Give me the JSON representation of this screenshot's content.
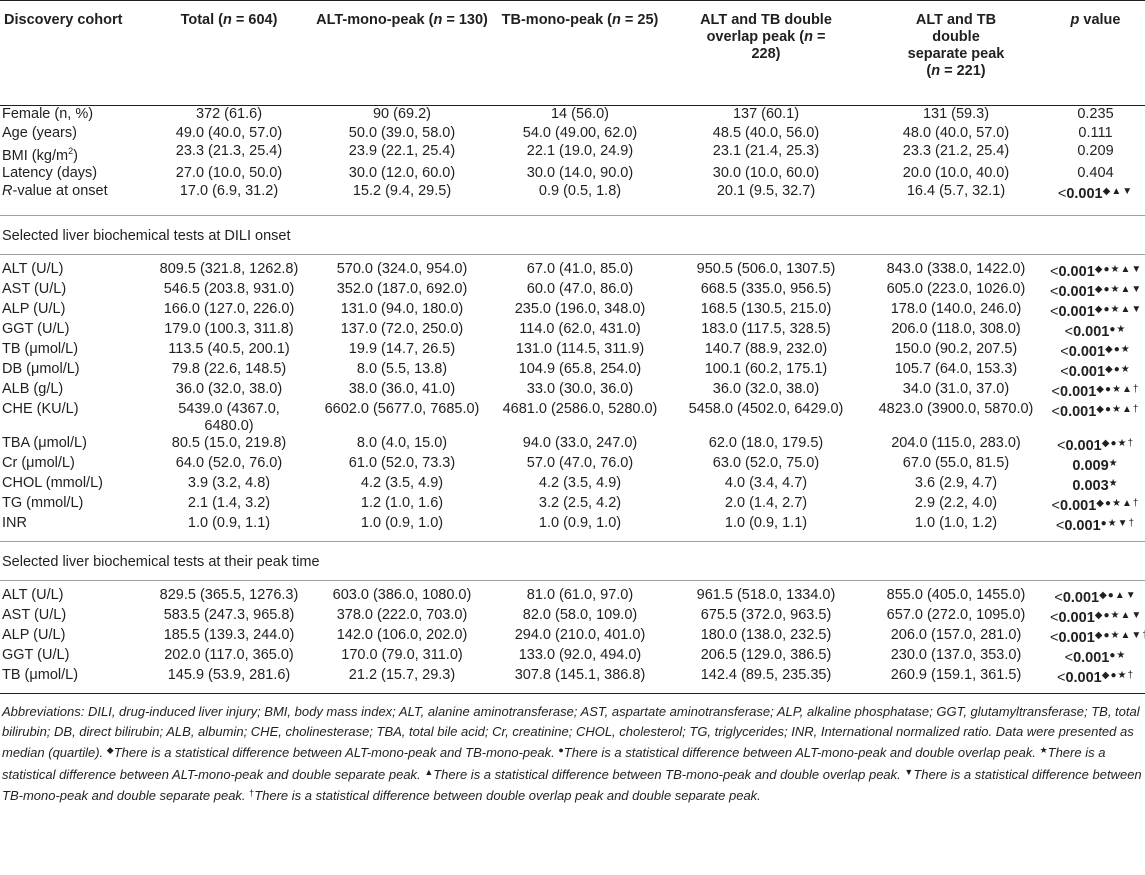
{
  "header": {
    "col0": "Discovery cohort",
    "col1_pre": "Total (",
    "col1_n": "n",
    "col1_post": " = 604)",
    "col2_pre": "ALT-mono-peak (",
    "col2_n": "n",
    "col2_post": " = 130)",
    "col3_pre": "TB-mono-peak (",
    "col3_n": "n",
    "col3_post": " = 25)",
    "col4_pre": "ALT and TB double overlap peak (",
    "col4_n": "n",
    "col4_post": " = 228)",
    "col5_pre": "ALT and TB double separate peak (",
    "col5_n": "n",
    "col5_post": " = 221)",
    "col6_pre": "",
    "col6_n": "p",
    "col6_post": " value"
  },
  "demographics": [
    {
      "label": "Female (n, %)",
      "total": "372 (61.6)",
      "alt": "90 (69.2)",
      "tb": "14 (56.0)",
      "overlap": "137 (60.1)",
      "separate": "131 (59.3)",
      "p": "0.235",
      "marks": "",
      "bold": false
    },
    {
      "label": "Age (years)",
      "total": "49.0 (40.0, 57.0)",
      "alt": "50.0 (39.0, 58.0)",
      "tb": "54.0 (49.00, 62.0)",
      "overlap": "48.5 (40.0, 56.0)",
      "separate": "48.0 (40.0, 57.0)",
      "p": "0.111",
      "marks": "",
      "bold": false
    },
    {
      "label": "BMI (kg/m²)",
      "total": "23.3 (21.3, 25.4)",
      "alt": "23.9 (22.1, 25.4)",
      "tb": "22.1 (19.0, 24.9)",
      "overlap": "23.1 (21.4, 25.3)",
      "separate": "23.3 (21.2, 25.4)",
      "p": "0.209",
      "marks": "",
      "bold": false
    },
    {
      "label": "Latency (days)",
      "total": "27.0 (10.0, 50.0)",
      "alt": "30.0 (12.0, 60.0)",
      "tb": "30.0 (14.0, 90.0)",
      "overlap": "30.0 (10.0, 60.0)",
      "separate": "20.0 (10.0, 40.0)",
      "p": "0.404",
      "marks": "",
      "bold": false
    },
    {
      "label": "R-value at onset",
      "total": "17.0 (6.9, 31.2)",
      "alt": "15.2 (9.4, 29.5)",
      "tb": "0.9 (0.5, 1.8)",
      "overlap": "20.1 (9.5, 32.7)",
      "separate": "16.4 (5.7, 32.1)",
      "p": "<0.001",
      "marks": "◆▲▼",
      "bold": true
    }
  ],
  "section_onset": "Selected liver biochemical tests at DILI onset",
  "onset": [
    {
      "label": "ALT (U/L)",
      "total": "809.5 (321.8, 1262.8)",
      "alt": "570.0 (324.0, 954.0)",
      "tb": "67.0 (41.0, 85.0)",
      "overlap": "950.5 (506.0, 1307.5)",
      "separate": "843.0 (338.0, 1422.0)",
      "p": "<0.001",
      "marks": "◆●★▲▼",
      "bold": true
    },
    {
      "label": "AST (U/L)",
      "total": "546.5 (203.8, 931.0)",
      "alt": "352.0 (187.0, 692.0)",
      "tb": "60.0 (47.0, 86.0)",
      "overlap": "668.5 (335.0, 956.5)",
      "separate": "605.0 (223.0, 1026.0)",
      "p": "<0.001",
      "marks": "◆●★▲▼",
      "bold": true
    },
    {
      "label": "ALP (U/L)",
      "total": "166.0 (127.0, 226.0)",
      "alt": "131.0 (94.0, 180.0)",
      "tb": "235.0 (196.0, 348.0)",
      "overlap": "168.5 (130.5, 215.0)",
      "separate": "178.0 (140.0, 246.0)",
      "p": "<0.001",
      "marks": "◆●★▲▼",
      "bold": true
    },
    {
      "label": "GGT (U/L)",
      "total": "179.0 (100.3, 311.8)",
      "alt": "137.0 (72.0, 250.0)",
      "tb": "114.0 (62.0, 431.0)",
      "overlap": "183.0 (117.5, 328.5)",
      "separate": "206.0 (118.0, 308.0)",
      "p": "<0.001",
      "marks": "●★",
      "bold": true
    },
    {
      "label": "TB (μmol/L)",
      "total": "113.5 (40.5, 200.1)",
      "alt": "19.9 (14.7, 26.5)",
      "tb": "131.0 (114.5, 311.9)",
      "overlap": "140.7 (88.9, 232.0)",
      "separate": "150.0 (90.2, 207.5)",
      "p": "<0.001",
      "marks": "◆●★",
      "bold": true
    },
    {
      "label": "DB (μmol/L)",
      "total": "79.8 (22.6, 148.5)",
      "alt": "8.0 (5.5, 13.8)",
      "tb": "104.9 (65.8, 254.0)",
      "overlap": "100.1 (60.2, 175.1)",
      "separate": "105.7 (64.0, 153.3)",
      "p": "<0.001",
      "marks": "◆●★",
      "bold": true
    },
    {
      "label": "ALB (g/L)",
      "total": "36.0 (32.0, 38.0)",
      "alt": "38.0 (36.0, 41.0)",
      "tb": "33.0 (30.0, 36.0)",
      "overlap": "36.0 (32.0, 38.0)",
      "separate": "34.0 (31.0, 37.0)",
      "p": "<0.001",
      "marks": "◆●★▲†",
      "bold": true
    },
    {
      "label": "CHE (KU/L)",
      "total": "5439.0 (4367.0, 6480.0)",
      "alt": "6602.0 (5677.0, 7685.0)",
      "tb": "4681.0 (2586.0, 5280.0)",
      "overlap": "5458.0 (4502.0, 6429.0)",
      "separate": "4823.0 (3900.0, 5870.0)",
      "p": "<0.001",
      "marks": "◆●★▲†",
      "bold": true
    },
    {
      "label": "TBA (μmol/L)",
      "total": "80.5 (15.0, 219.8)",
      "alt": "8.0 (4.0, 15.0)",
      "tb": "94.0 (33.0, 247.0)",
      "overlap": "62.0 (18.0, 179.5)",
      "separate": "204.0 (115.0, 283.0)",
      "p": "<0.001",
      "marks": "◆●★†",
      "bold": true
    },
    {
      "label": "Cr (μmol/L)",
      "total": "64.0 (52.0, 76.0)",
      "alt": "61.0 (52.0, 73.3)",
      "tb": "57.0 (47.0, 76.0)",
      "overlap": "63.0 (52.0, 75.0)",
      "separate": "67.0 (55.0, 81.5)",
      "p": "0.009",
      "marks": "★",
      "bold": true
    },
    {
      "label": "CHOL (mmol/L)",
      "total": "3.9 (3.2, 4.8)",
      "alt": "4.2 (3.5, 4.9)",
      "tb": "4.2 (3.5, 4.9)",
      "overlap": "4.0 (3.4, 4.7)",
      "separate": "3.6 (2.9, 4.7)",
      "p": "0.003",
      "marks": "★",
      "bold": true
    },
    {
      "label": "TG (mmol/L)",
      "total": "2.1 (1.4, 3.2)",
      "alt": "1.2 (1.0, 1.6)",
      "tb": "3.2 (2.5, 4.2)",
      "overlap": "2.0 (1.4, 2.7)",
      "separate": "2.9 (2.2, 4.0)",
      "p": "<0.001",
      "marks": "◆●★▲†",
      "bold": true
    },
    {
      "label": "INR",
      "total": "1.0 (0.9, 1.1)",
      "alt": "1.0 (0.9, 1.0)",
      "tb": "1.0 (0.9, 1.0)",
      "overlap": "1.0 (0.9, 1.1)",
      "separate": "1.0 (1.0, 1.2)",
      "p": "<0.001",
      "marks": "●★▼†",
      "bold": true
    }
  ],
  "section_peak": "Selected liver biochemical tests at their peak time",
  "peak": [
    {
      "label": "ALT (U/L)",
      "total": "829.5 (365.5, 1276.3)",
      "alt": "603.0 (386.0, 1080.0)",
      "tb": "81.0 (61.0, 97.0)",
      "overlap": "961.5 (518.0, 1334.0)",
      "separate": "855.0 (405.0, 1455.0)",
      "p": "<0.001",
      "marks": "◆●▲▼",
      "bold": true
    },
    {
      "label": "AST (U/L)",
      "total": "583.5 (247.3, 965.8)",
      "alt": "378.0 (222.0, 703.0)",
      "tb": "82.0 (58.0, 109.0)",
      "overlap": "675.5 (372.0, 963.5)",
      "separate": "657.0 (272.0, 1095.0)",
      "p": "<0.001",
      "marks": "◆●★▲▼",
      "bold": true
    },
    {
      "label": "ALP (U/L)",
      "total": "185.5 (139.3, 244.0)",
      "alt": "142.0 (106.0, 202.0)",
      "tb": "294.0 (210.0, 401.0)",
      "overlap": "180.0 (138.0, 232.5)",
      "separate": "206.0 (157.0, 281.0)",
      "p": "<0.001",
      "marks": "◆●★▲▼†",
      "bold": true
    },
    {
      "label": "GGT (U/L)",
      "total": "202.0 (117.0, 365.0)",
      "alt": "170.0 (79.0, 311.0)",
      "tb": "133.0 (92.0, 494.0)",
      "overlap": "206.5 (129.0, 386.5)",
      "separate": "230.0 (137.0, 353.0)",
      "p": "<0.001",
      "marks": "●★",
      "bold": true
    },
    {
      "label": "TB (μmol/L)",
      "total": "145.9 (53.9, 281.6)",
      "alt": "21.2 (15.7, 29.3)",
      "tb": "307.8 (145.1, 386.8)",
      "overlap": "142.4 (89.5, 235.35)",
      "separate": "260.9 (159.1, 361.5)",
      "p": "<0.001",
      "marks": "◆●★†",
      "bold": true
    }
  ],
  "footnote": {
    "abbrev": "Abbreviations: DILI, drug-induced liver injury; BMI, body mass index; ALT, alanine aminotransferase; AST, aspartate aminotransferase; ALP, alkaline phosphatase; GGT, glutamyltransferase; TB, total bilirubin; DB, direct bilirubin; ALB, albumin; CHE, cholinesterase; TBA, total bile acid; Cr, creatinine; CHOL, cholesterol; TG, triglycerides; INR, International normalized ratio. Data were presented as median (quartile).",
    "notes": [
      {
        "sym": "◆",
        "text": "There is a statistical difference between ALT-mono-peak and TB-mono-peak."
      },
      {
        "sym": "●",
        "text": "There is a statistical difference between ALT-mono-peak and double overlap peak."
      },
      {
        "sym": "★",
        "text": "There is a statistical difference between ALT-mono-peak and double separate peak."
      },
      {
        "sym": "▲",
        "text": "There is a statistical difference between TB-mono-peak and double overlap peak."
      },
      {
        "sym": "▼",
        "text": "There is a statistical difference between TB-mono-peak and double separate peak."
      },
      {
        "sym": "†",
        "text": "There is a statistical difference between double overlap peak and double separate peak."
      }
    ]
  }
}
